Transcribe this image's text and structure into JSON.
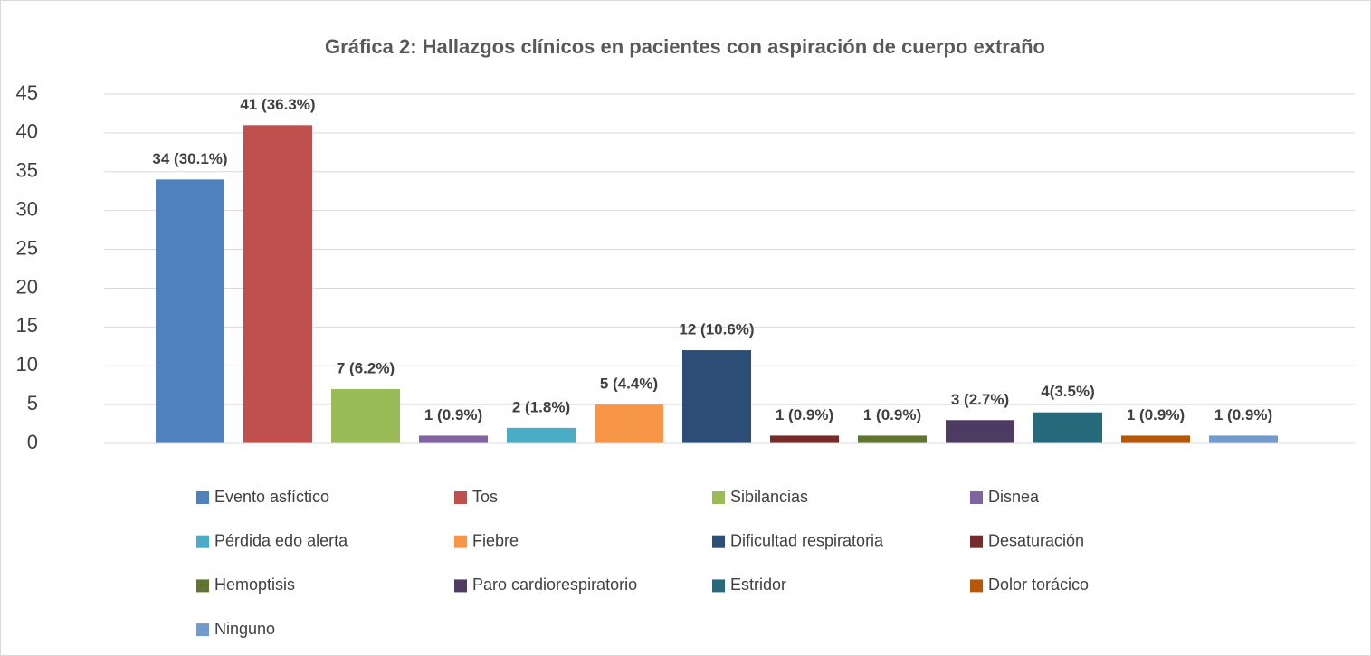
{
  "chart_data": {
    "type": "bar",
    "title": "Gráfica 2: Hallazgos clínicos en pacientes con aspiración de cuerpo extraño",
    "ylim": [
      0,
      45
    ],
    "yticks": [
      0,
      5,
      10,
      15,
      20,
      25,
      30,
      35,
      40,
      45
    ],
    "grid": true,
    "legend": "bottom",
    "series": [
      {
        "name": "Evento asfíctico",
        "color": "#4f81bd",
        "values": [
          34
        ],
        "value_labels": [
          "34 (30.1%)"
        ]
      },
      {
        "name": "Tos",
        "color": "#c0504d",
        "values": [
          41
        ],
        "value_labels": [
          "41 (36.3%)"
        ]
      },
      {
        "name": "Sibilancias",
        "color": "#9bbb59",
        "values": [
          7
        ],
        "value_labels": [
          "7 (6.2%)"
        ]
      },
      {
        "name": "Disnea",
        "color": "#8064a2",
        "values": [
          1
        ],
        "value_labels": [
          "1 (0.9%)"
        ]
      },
      {
        "name": "Pérdida edo alerta",
        "color": "#4bacc6",
        "values": [
          2
        ],
        "value_labels": [
          "2 (1.8%)"
        ]
      },
      {
        "name": "Fiebre",
        "color": "#f79646",
        "values": [
          5
        ],
        "value_labels": [
          "5 (4.4%)"
        ]
      },
      {
        "name": "Dificultad respiratoria",
        "color": "#2c4d75",
        "values": [
          12
        ],
        "value_labels": [
          "12 (10.6%)"
        ]
      },
      {
        "name": "Desaturación",
        "color": "#772c2a",
        "values": [
          1
        ],
        "value_labels": [
          "1 (0.9%)"
        ]
      },
      {
        "name": "Hemoptisis",
        "color": "#5f7530",
        "values": [
          1
        ],
        "value_labels": [
          "1 (0.9%)"
        ]
      },
      {
        "name": "Paro cardiorespiratorio",
        "color": "#4d3b62",
        "values": [
          3
        ],
        "value_labels": [
          "3 (2.7%)"
        ]
      },
      {
        "name": "Estridor",
        "color": "#276a7c",
        "values": [
          4
        ],
        "value_labels": [
          "4(3.5%)"
        ]
      },
      {
        "name": "Dolor torácico",
        "color": "#b65708",
        "values": [
          1
        ],
        "value_labels": [
          "1 (0.9%)"
        ]
      },
      {
        "name": "Ninguno",
        "color": "#729aca",
        "values": [
          1
        ],
        "value_labels": [
          "1 (0.9%)"
        ]
      }
    ]
  }
}
